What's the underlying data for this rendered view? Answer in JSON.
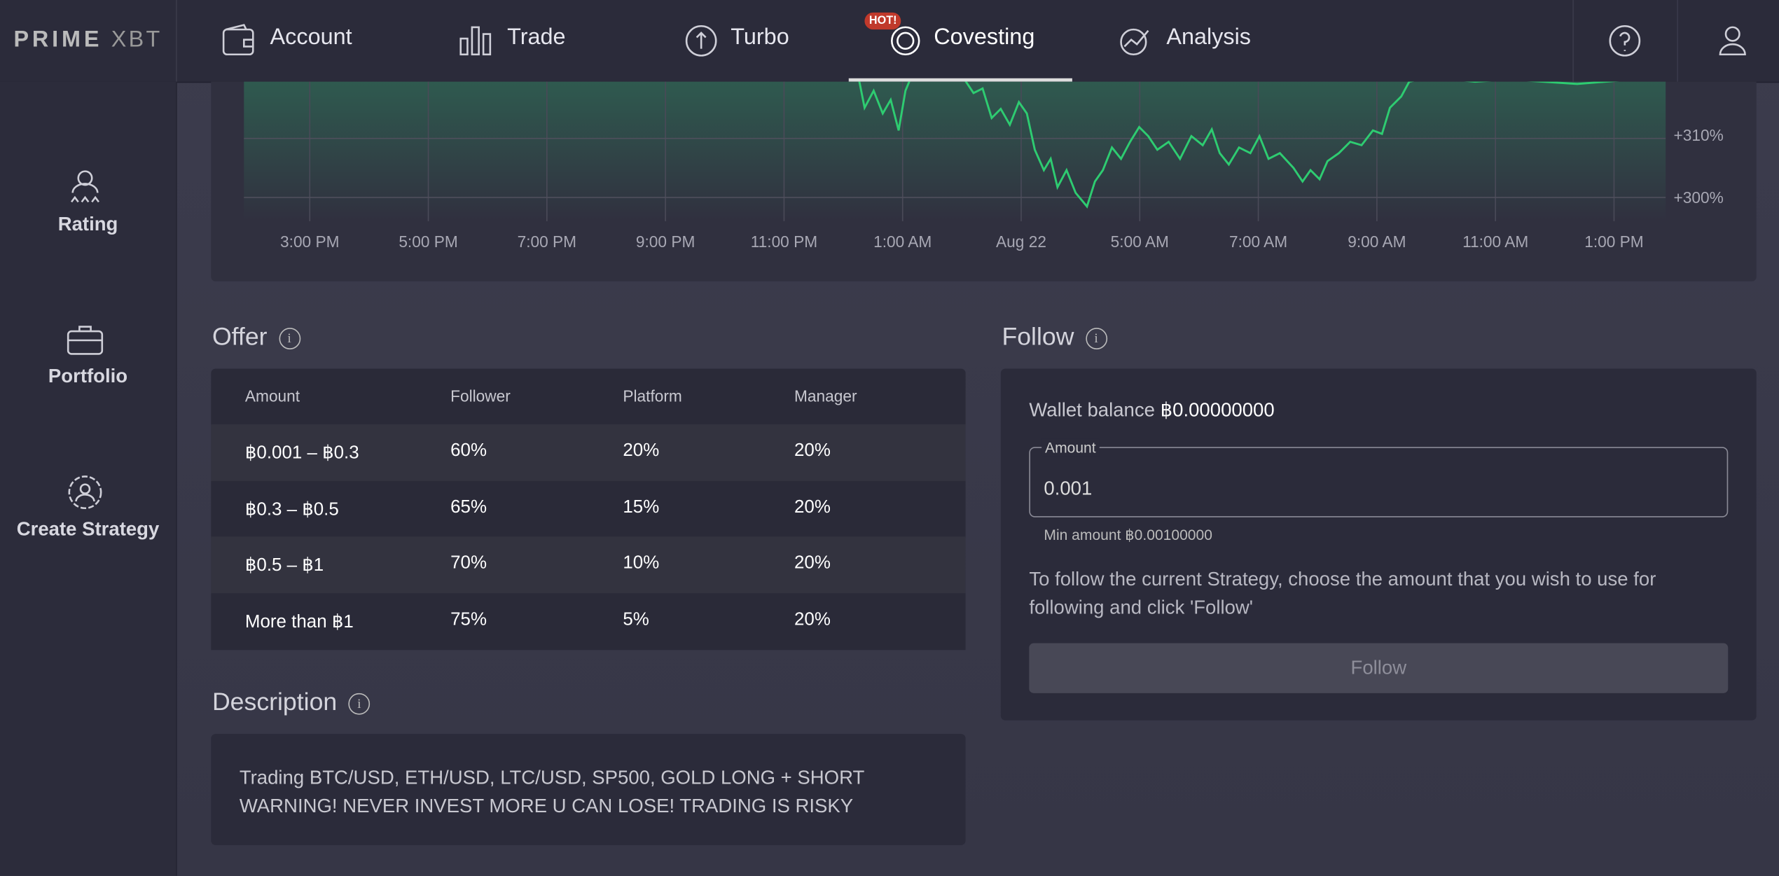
{
  "nav": {
    "logo": "PRIME",
    "logo_suffix": "XBT",
    "items": [
      "Account",
      "Trade",
      "Turbo",
      "Covesting",
      "Analysis"
    ],
    "badge": "HOT!"
  },
  "sidebar": {
    "items": [
      "Rating",
      "Portfolio",
      "Create Strategy"
    ]
  },
  "chart": {
    "x_labels": [
      "3:00 PM",
      "5:00 PM",
      "7:00 PM",
      "9:00 PM",
      "11:00 PM",
      "1:00 AM",
      "Aug 22",
      "5:00 AM",
      "7:00 AM",
      "9:00 AM",
      "11:00 AM",
      "1:00 PM"
    ],
    "y_labels": [
      "+310%",
      "+300%"
    ]
  },
  "offer": {
    "title": "Offer",
    "headers": [
      "Amount",
      "Follower",
      "Platform",
      "Manager"
    ],
    "rows": [
      [
        "฿0.001 – ฿0.3",
        "60%",
        "20%",
        "20%"
      ],
      [
        "฿0.3 – ฿0.5",
        "65%",
        "15%",
        "20%"
      ],
      [
        "฿0.5 – ฿1",
        "70%",
        "10%",
        "20%"
      ],
      [
        "More than ฿1",
        "75%",
        "5%",
        "20%"
      ]
    ]
  },
  "description": {
    "title": "Description",
    "text": "Trading BTC/USD, ETH/USD, LTC/USD, SP500, GOLD LONG + SHORT WARNING! NEVER INVEST MORE U CAN LOSE! TRADING IS RISKY"
  },
  "follow": {
    "title": "Follow",
    "wallet_label": "Wallet balance",
    "wallet_value": "฿0.00000000",
    "amount_label": "Amount",
    "amount_value": "0.001",
    "min_amount": "Min amount ฿0.00100000",
    "note": "To follow the current Strategy, choose the amount that you wish to use for following and click 'Follow'",
    "button": "Follow"
  }
}
